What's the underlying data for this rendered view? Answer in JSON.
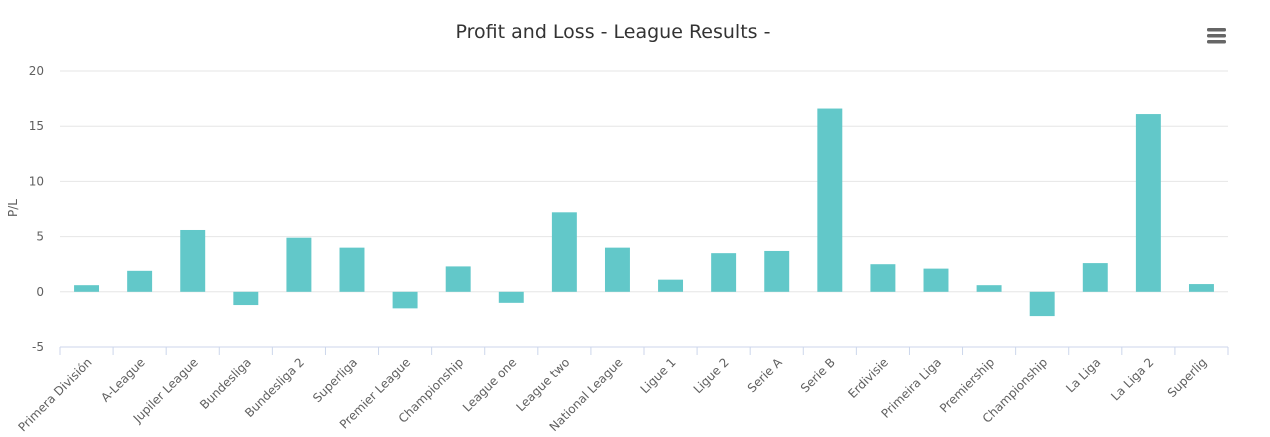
{
  "chart_data": {
    "type": "bar",
    "title": "Profit and Loss - League Results -",
    "xlabel": "",
    "ylabel": "P/L",
    "ylim": [
      -5,
      20
    ],
    "yticks": [
      -5,
      0,
      5,
      10,
      15,
      20
    ],
    "grid": true,
    "legend": "none",
    "series_color": "#62c8c9",
    "categories": [
      "Primera División",
      "A-League",
      "Jupiler League",
      "Bundesliga",
      "Bundesliga 2",
      "Superliga",
      "Premier League",
      "Championship",
      "League one",
      "League two",
      "National League",
      "Ligue 1",
      "Ligue 2",
      "Serie A",
      "Serie B",
      "Erdivisie",
      "Primeira Liga",
      "Premiership",
      "Championship",
      "La Liga",
      "La Liga 2",
      "Superlig"
    ],
    "values": [
      0.6,
      1.9,
      5.6,
      -1.2,
      4.9,
      4.0,
      -1.5,
      2.3,
      -1.0,
      7.2,
      4.0,
      1.1,
      3.5,
      3.7,
      16.6,
      2.5,
      2.1,
      0.6,
      -2.2,
      2.6,
      16.1,
      0.7
    ]
  },
  "toolbar": {
    "menu_icon": "hamburger-menu-icon"
  },
  "colors": {
    "bar": "#62c8c9",
    "grid": "#e6e6e6",
    "axis": "#ccd6eb",
    "text": "#606060",
    "title": "#333333",
    "menu": "#666666"
  }
}
